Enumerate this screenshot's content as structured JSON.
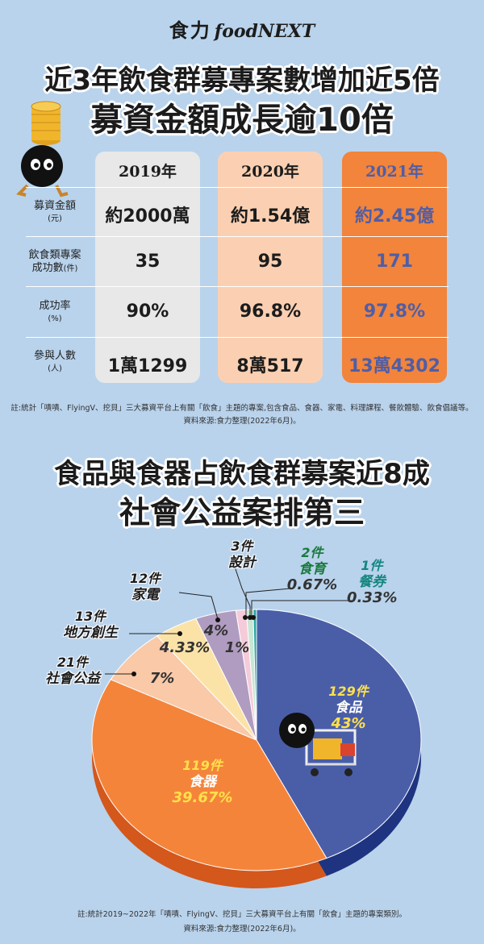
{
  "brand": {
    "cn": "食力",
    "en": "foodNEXT"
  },
  "header": {
    "line1": "近3年飲食群募專案數增加近5倍",
    "line2": "募資金額成長逾10倍"
  },
  "table": {
    "years": [
      "2019年",
      "2020年",
      "2021年"
    ],
    "rows": [
      {
        "label": "募資金額",
        "unit": "(元)",
        "values": [
          "約2000萬",
          "約1.54億",
          "約2.45億"
        ]
      },
      {
        "label": "飲食類專案",
        "label2": "成功數",
        "unit": "(件)",
        "values": [
          "35",
          "95",
          "171"
        ]
      },
      {
        "label": "成功率",
        "unit": "(%)",
        "values": [
          "90%",
          "96.8%",
          "97.8%"
        ]
      },
      {
        "label": "參與人數",
        "unit": "(人)",
        "values": [
          "1萬1299",
          "8萬517",
          "13萬4302"
        ]
      }
    ],
    "note": "註:統計「嘖嘖、FlyingV、挖貝」三大募資平台上有關「飲食」主題的專案,包含食品、食器、家電、料理課程、餐飲體驗、飲食倡議等。",
    "source": "資料來源:食力整理(2022年6月)。"
  },
  "section2": {
    "line1": "食品與食器占飲食群募案近8成",
    "line2": "社會公益案排第三"
  },
  "chart_data": {
    "type": "pie",
    "slices": [
      {
        "count": "129件",
        "name": "食品",
        "pct": "43%",
        "value": 43,
        "color": "#4a5ea8",
        "side": "#1f3480"
      },
      {
        "count": "119件",
        "name": "食器",
        "pct": "39.67%",
        "value": 39.67,
        "color": "#f5843b",
        "side": "#d4571b"
      },
      {
        "count": "21件",
        "name": "社會公益",
        "pct": "7%",
        "value": 7,
        "color": "#f9c9a8",
        "side": "#dea27a"
      },
      {
        "count": "13件",
        "name": "地方創生",
        "pct": "4.33%",
        "value": 4.33,
        "color": "#fbe3a8",
        "side": "#dbbf7e"
      },
      {
        "count": "12件",
        "name": "家電",
        "pct": "4%",
        "value": 4,
        "color": "#b09cc0",
        "side": "#8a78a0"
      },
      {
        "count": "3件",
        "name": "設計",
        "pct": "1%",
        "value": 1,
        "color": "#f5cbd9",
        "side": "#d6a3b4"
      },
      {
        "count": "2件",
        "name": "食育",
        "pct": "0.67%",
        "value": 0.67,
        "color": "#c8e6d4",
        "side": "#9ac4ab"
      },
      {
        "count": "1件",
        "name": "餐券",
        "pct": "0.33%",
        "value": 0.33,
        "color": "#27a7a0",
        "side": "#17807a"
      }
    ]
  },
  "footer": {
    "note": "註:統計2019~2022年「嘖嘖、FlyingV、挖貝」三大募資平台上有關「飲食」主題的專案類別。",
    "source": "資料來源:食力整理(2022年6月)。"
  }
}
